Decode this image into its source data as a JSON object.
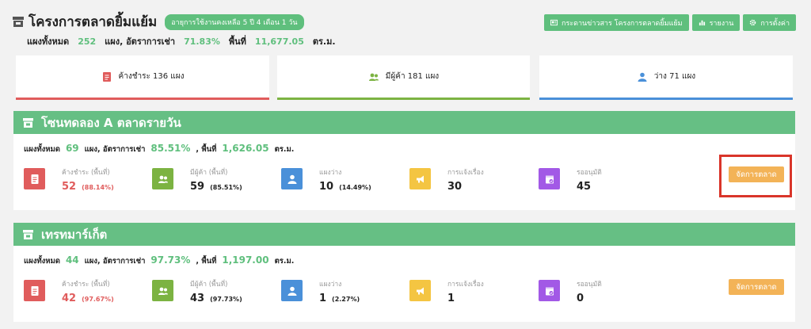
{
  "header": {
    "title": "โครงการตลาดยิ้มแย้ม",
    "expiry": "อายุการใช้งานคงเหลือ 5 ปี 4 เดือน 1 วัน",
    "summary": {
      "total_label": "แผงทั้งหมด",
      "total_value": "252",
      "rate_label": "แผง, อัตราการเช่า",
      "rate_value": "71.83%",
      "area_label": "พื้นที่",
      "area_value": "11,677.05",
      "area_unit": "ตร.ม."
    },
    "actions": [
      {
        "label": "กระดานข่าวสาร โครงการตลาดยิ้มแย้ม",
        "icon": "newspaper-icon"
      },
      {
        "label": "รายงาน",
        "icon": "bar-chart-icon"
      },
      {
        "label": "การตั้งค่า",
        "icon": "gear-icon"
      }
    ]
  },
  "stats": [
    {
      "label": "ค้างชำระ 136 แผง",
      "icon": "invoice-icon",
      "color": "#e05c5c"
    },
    {
      "label": "มีผู้ค้า 181 แผง",
      "icon": "users-icon",
      "color": "#7cb342"
    },
    {
      "label": "ว่าง 71 แผง",
      "icon": "user-icon",
      "color": "#4a90d9"
    }
  ],
  "zones": [
    {
      "name": "โซนทดลอง A ตลาดรายวัน",
      "total_label": "แผงทั้งหมด",
      "total_value": "69",
      "rate_label": "แผง, อัตราการเช่า",
      "rate_value": "85.51%",
      "area_label": ", พื้นที่",
      "area_value": "1,626.05",
      "area_unit": "ตร.ม.",
      "metrics": [
        {
          "label": "ค้างชำระ (พื้นที่)",
          "value": "52",
          "pct": "(88.14%)"
        },
        {
          "label": "มีผู้ค้า (พื้นที่)",
          "value": "59",
          "pct": "(85.51%)"
        },
        {
          "label": "แผงว่าง",
          "value": "10",
          "pct": "(14.49%)"
        },
        {
          "label": "การแจ้งเรื่อง",
          "value": "30",
          "pct": ""
        },
        {
          "label": "รออนุมัติ",
          "value": "45",
          "pct": ""
        }
      ],
      "manage_label": "จัดการตลาด"
    },
    {
      "name": "เทรทมาร์เก็ต",
      "total_label": "แผงทั้งหมด",
      "total_value": "44",
      "rate_label": "แผง, อัตราการเช่า",
      "rate_value": "97.73%",
      "area_label": ", พื้นที่",
      "area_value": "1,197.00",
      "area_unit": "ตร.ม.",
      "metrics": [
        {
          "label": "ค้างชำระ (พื้นที่)",
          "value": "42",
          "pct": "(97.67%)"
        },
        {
          "label": "มีผู้ค้า (พื้นที่)",
          "value": "43",
          "pct": "(97.73%)"
        },
        {
          "label": "แผงว่าง",
          "value": "1",
          "pct": "(2.27%)"
        },
        {
          "label": "การแจ้งเรื่อง",
          "value": "1",
          "pct": ""
        },
        {
          "label": "รออนุมัติ",
          "value": "0",
          "pct": ""
        }
      ],
      "manage_label": "จัดการตลาด"
    }
  ],
  "colors": {
    "green": "#5fbf7d",
    "zone_header": "#66bf84",
    "red": "#e05c5c",
    "olive": "#7cb342",
    "blue": "#4a90d9",
    "yellow": "#f4c542",
    "purple": "#a259e6",
    "orange": "#f3b357",
    "highlight": "#d9352a"
  }
}
